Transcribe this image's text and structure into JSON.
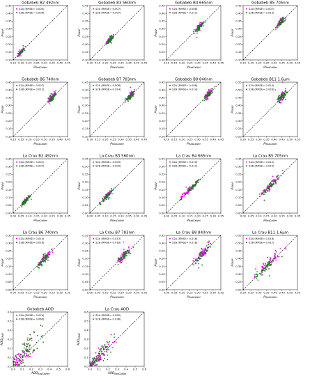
{
  "colors": {
    "s2a": "#ff00ff",
    "s2b": "#1a7a1a",
    "one_to_one": "#000000"
  },
  "chart_data": [
    {
      "type": "scatter",
      "title": "Gobabeb B2 492nm",
      "xlabel": "ρ_RadCalNet",
      "ylabel": "ρ_SNAP",
      "xlim": [
        0.1,
        0.45
      ],
      "ylim": [
        0.1,
        0.45
      ],
      "ticks": [
        0.1,
        0.15,
        0.2,
        0.25,
        0.3,
        0.35,
        0.4,
        0.45
      ],
      "tick_labels": [
        "0.10",
        "0.15",
        "0.20",
        "0.25",
        "0.30",
        "0.35",
        "0.40",
        "0.45"
      ],
      "legend": [
        "S2A (RMSE= 0.005)",
        "S2B (RMSE= 0.006)"
      ],
      "center": [
        0.15,
        0.15
      ],
      "spread": 0.012,
      "scatter": 0.005
    },
    {
      "type": "scatter",
      "title": "Gobabeb B3 560nm",
      "xlabel": "ρ_RadCalNet",
      "ylabel": "ρ_SNAP",
      "xlim": [
        0.1,
        0.45
      ],
      "ylim": [
        0.1,
        0.45
      ],
      "ticks": [
        0.1,
        0.15,
        0.2,
        0.25,
        0.3,
        0.35,
        0.4,
        0.45
      ],
      "tick_labels": [
        "0.10",
        "0.15",
        "0.20",
        "0.25",
        "0.30",
        "0.35",
        "0.40",
        "0.45"
      ],
      "legend": [
        "S2A (RMSE= 0.007)",
        "S2B (RMSE= 0.007)"
      ],
      "center": [
        0.23,
        0.23
      ],
      "spread": 0.012,
      "scatter": 0.006
    },
    {
      "type": "scatter",
      "title": "Gobabeb B4 665nm",
      "xlabel": "ρ_RadCalNet",
      "ylabel": "ρ_SNAP",
      "xlim": [
        0.1,
        0.45
      ],
      "ylim": [
        0.1,
        0.45
      ],
      "ticks": [
        0.1,
        0.15,
        0.2,
        0.25,
        0.3,
        0.35,
        0.4,
        0.45
      ],
      "tick_labels": [
        "0.10",
        "0.15",
        "0.20",
        "0.25",
        "0.30",
        "0.35",
        "0.40",
        "0.45"
      ],
      "legend": [
        "S2A (RMSE= 0.008)",
        "S2B (RMSE= 0.011)"
      ],
      "center": [
        0.31,
        0.31
      ],
      "spread": 0.012,
      "scatter": 0.008
    },
    {
      "type": "scatter",
      "title": "Gobabeb B5 705nm",
      "xlabel": "ρ_RadCalNet",
      "ylabel": "ρ_SNAP",
      "xlim": [
        0.1,
        0.45
      ],
      "ylim": [
        0.1,
        0.45
      ],
      "ticks": [
        0.1,
        0.15,
        0.2,
        0.25,
        0.3,
        0.35,
        0.4,
        0.45
      ],
      "tick_labels": [
        "0.10",
        "0.15",
        "0.20",
        "0.25",
        "0.30",
        "0.35",
        "0.40",
        "0.45"
      ],
      "legend": [
        "S2A (RMSE= 0.007)",
        "S2B (RMSE= 0.013)"
      ],
      "center": [
        0.34,
        0.34
      ],
      "spread": 0.012,
      "scatter": 0.009
    },
    {
      "type": "scatter",
      "title": "Gobabeb B6 740nm",
      "xlabel": "ρ_RadCalNet",
      "ylabel": "ρ_SNAP",
      "xlim": [
        0.1,
        0.45
      ],
      "ylim": [
        0.1,
        0.45
      ],
      "ticks": [
        0.1,
        0.15,
        0.2,
        0.25,
        0.3,
        0.35,
        0.4,
        0.45
      ],
      "tick_labels": [
        "0.10",
        "0.15",
        "0.20",
        "0.25",
        "0.30",
        "0.35",
        "0.40",
        "0.45"
      ],
      "legend": [
        "S2A (RMSE= 0.007)",
        "S2B (RMSE= 0.013)"
      ],
      "center": [
        0.35,
        0.35
      ],
      "spread": 0.012,
      "scatter": 0.009
    },
    {
      "type": "scatter",
      "title": "Gobabeb B7 783nm",
      "xlabel": "ρ_RadCalNet",
      "ylabel": "ρ_SNAP",
      "xlim": [
        0.1,
        0.45
      ],
      "ylim": [
        0.1,
        0.45
      ],
      "ticks": [
        0.1,
        0.15,
        0.2,
        0.25,
        0.3,
        0.35,
        0.4,
        0.45
      ],
      "tick_labels": [
        "0.10",
        "0.15",
        "0.20",
        "0.25",
        "0.30",
        "0.35",
        "0.40",
        "0.45"
      ],
      "legend": [
        "S2A (RMSE= 0.008)",
        "S2B (RMSE= 0.014)"
      ],
      "center": [
        0.36,
        0.36
      ],
      "spread": 0.012,
      "scatter": 0.009
    },
    {
      "type": "scatter",
      "title": "Gobabeb B8 840nm",
      "xlabel": "ρ_RadCalNet",
      "ylabel": "ρ_SNAP",
      "xlim": [
        0.1,
        0.45
      ],
      "ylim": [
        0.1,
        0.45
      ],
      "ticks": [
        0.1,
        0.15,
        0.2,
        0.25,
        0.3,
        0.35,
        0.4,
        0.45
      ],
      "tick_labels": [
        "0.10",
        "0.15",
        "0.20",
        "0.25",
        "0.30",
        "0.35",
        "0.40",
        "0.45"
      ],
      "legend": [
        "S2A (RMSE= 0.008)",
        "S2B (RMSE= 0.014)"
      ],
      "center": [
        0.37,
        0.37
      ],
      "spread": 0.012,
      "scatter": 0.009
    },
    {
      "type": "scatter",
      "title": "Gobabeb B11 1.6µm",
      "xlabel": "ρ_RadCalNet",
      "ylabel": "ρ_SNAP",
      "xlim": [
        0.2,
        0.55
      ],
      "ylim": [
        0.2,
        0.55
      ],
      "ticks": [
        0.2,
        0.25,
        0.3,
        0.35,
        0.4,
        0.45,
        0.5,
        0.55
      ],
      "tick_labels": [
        "0.20",
        "0.25",
        "0.30",
        "0.35",
        "0.40",
        "0.45",
        "0.50",
        "0.55"
      ],
      "legend": [
        "S2A (RMSE= 0.014)",
        "S2B (RMSE= 0.026)"
      ],
      "center": [
        0.45,
        0.46
      ],
      "spread": 0.014,
      "scatter": 0.013
    },
    {
      "type": "scatter",
      "title": "La Crau B2 492nm",
      "xlabel": "ρ_RadCalNet",
      "ylabel": "ρ_SNAP",
      "xlim": [
        0.0,
        0.35
      ],
      "ylim": [
        0.0,
        0.35
      ],
      "ticks": [
        0.0,
        0.05,
        0.1,
        0.15,
        0.2,
        0.25,
        0.3,
        0.35
      ],
      "tick_labels": [
        "0.00",
        "0.05",
        "0.10",
        "0.15",
        "0.20",
        "0.25",
        "0.30",
        "0.35"
      ],
      "legend": [
        "S2A (RMSE= 0.007)",
        "S2B (RMSE= 0.007)"
      ],
      "center": [
        0.08,
        0.08
      ],
      "spread": 0.015,
      "scatter": 0.006
    },
    {
      "type": "scatter",
      "title": "La Crau B3 560nm",
      "xlabel": "ρ_RadCalNet",
      "ylabel": "ρ_SNAP",
      "xlim": [
        0.0,
        0.35
      ],
      "ylim": [
        0.0,
        0.35
      ],
      "ticks": [
        0.0,
        0.05,
        0.1,
        0.15,
        0.2,
        0.25,
        0.3,
        0.35
      ],
      "tick_labels": [
        "0.00",
        "0.05",
        "0.10",
        "0.15",
        "0.20",
        "0.25",
        "0.30",
        "0.35"
      ],
      "legend": [
        "S2A (RMSE= 0.009)",
        "S2B (RMSE= 0.009)"
      ],
      "center": [
        0.11,
        0.11
      ],
      "spread": 0.018,
      "scatter": 0.007
    },
    {
      "type": "scatter",
      "title": "La Crau B4 665nm",
      "xlabel": "ρ_RadCalNet",
      "ylabel": "ρ_SNAP",
      "xlim": [
        0.0,
        0.35
      ],
      "ylim": [
        0.0,
        0.35
      ],
      "ticks": [
        0.0,
        0.05,
        0.1,
        0.15,
        0.2,
        0.25,
        0.3,
        0.35
      ],
      "tick_labels": [
        "0.00",
        "0.05",
        "0.10",
        "0.15",
        "0.20",
        "0.25",
        "0.30",
        "0.35"
      ],
      "legend": [
        "S2A (RMSE= 0.010)",
        "S2B (RMSE= 0.011)"
      ],
      "center": [
        0.15,
        0.15
      ],
      "spread": 0.03,
      "scatter": 0.008
    },
    {
      "type": "scatter",
      "title": "La Crau B5 705nm",
      "xlabel": "ρ_RadCalNet",
      "ylabel": "ρ_SNAP",
      "xlim": [
        0.0,
        0.35
      ],
      "ylim": [
        0.0,
        0.35
      ],
      "ticks": [
        0.0,
        0.05,
        0.1,
        0.15,
        0.2,
        0.25,
        0.3,
        0.35
      ],
      "tick_labels": [
        "0.00",
        "0.05",
        "0.10",
        "0.15",
        "0.20",
        "0.25",
        "0.30",
        "0.35"
      ],
      "legend": [
        "S2A (RMSE= 0.012)",
        "S2B (RMSE= 0.015)"
      ],
      "center": [
        0.18,
        0.18
      ],
      "spread": 0.03,
      "scatter": 0.01
    },
    {
      "type": "scatter",
      "title": "La Crau B6 740nm",
      "xlabel": "ρ_RadCalNet",
      "ylabel": "ρ_SNAP",
      "xlim": [
        0.0,
        0.35
      ],
      "ylim": [
        0.0,
        0.35
      ],
      "ticks": [
        0.0,
        0.05,
        0.1,
        0.15,
        0.2,
        0.25,
        0.3,
        0.35
      ],
      "tick_labels": [
        "0.00",
        "0.05",
        "0.10",
        "0.15",
        "0.20",
        "0.25",
        "0.30",
        "0.35"
      ],
      "legend": [
        "S2A (RMSE= 0.015)",
        "S2B (RMSE= 0.016)"
      ],
      "center": [
        0.2,
        0.2
      ],
      "spread": 0.02,
      "scatter": 0.012
    },
    {
      "type": "scatter",
      "title": "La Crau B7 783nm",
      "xlabel": "ρ_RadCalNet",
      "ylabel": "ρ_SNAP",
      "xlim": [
        0.0,
        0.35
      ],
      "ylim": [
        0.0,
        0.35
      ],
      "ticks": [
        0.0,
        0.05,
        0.1,
        0.15,
        0.2,
        0.25,
        0.3,
        0.35
      ],
      "tick_labels": [
        "0.00",
        "0.05",
        "0.10",
        "0.15",
        "0.20",
        "0.25",
        "0.30",
        "0.35"
      ],
      "legend": [
        "S2A (RMSE= 0.013)",
        "S2B (RMSE= 0.018)"
      ],
      "center": [
        0.22,
        0.22
      ],
      "spread": 0.022,
      "scatter": 0.013
    },
    {
      "type": "scatter",
      "title": "La Crau B8 840nm",
      "xlabel": "ρ_RadCalNet",
      "ylabel": "ρ_SNAP",
      "xlim": [
        0.0,
        0.35
      ],
      "ylim": [
        0.0,
        0.35
      ],
      "ticks": [
        0.0,
        0.05,
        0.1,
        0.15,
        0.2,
        0.25,
        0.3,
        0.35
      ],
      "tick_labels": [
        "0.00",
        "0.05",
        "0.10",
        "0.15",
        "0.20",
        "0.25",
        "0.30",
        "0.35"
      ],
      "legend": [
        "S2A (RMSE= 0.018)",
        "S2B (RMSE= 0.018)"
      ],
      "center": [
        0.23,
        0.23
      ],
      "spread": 0.022,
      "scatter": 0.014
    },
    {
      "type": "scatter",
      "title": "La Crau B11 1.6µm",
      "xlabel": "ρ_RadCalNet",
      "ylabel": "ρ_SNAP",
      "xlim": [
        0.2,
        0.55
      ],
      "ylim": [
        0.2,
        0.55
      ],
      "ticks": [
        0.2,
        0.25,
        0.3,
        0.35,
        0.4,
        0.45,
        0.5,
        0.55
      ],
      "tick_labels": [
        "0.20",
        "0.25",
        "0.30",
        "0.35",
        "0.40",
        "0.45",
        "0.50",
        "0.55"
      ],
      "legend": [
        "S2A (RMSE= 0.018)",
        "S2B (RMSE= 0.017)"
      ],
      "center": [
        0.36,
        0.36
      ],
      "spread": 0.04,
      "scatter": 0.014
    },
    {
      "type": "scatter",
      "title": "Gobabeb AOD",
      "xlabel": "AOD_RadCalNet",
      "ylabel": "AOD_SNAP",
      "xlim": [
        0.0,
        0.6
      ],
      "ylim": [
        0.0,
        0.6
      ],
      "ticks": [
        0.0,
        0.1,
        0.2,
        0.3,
        0.4,
        0.5,
        0.6
      ],
      "tick_labels": [
        "0.0",
        "0.1",
        "0.2",
        "0.3",
        "0.4",
        "0.5",
        "0.6"
      ],
      "legend": [
        "S2A (RMSE= 0.074)",
        "S2B (RMSE= 0.060)"
      ],
      "center": [
        0.1,
        0.12
      ],
      "spread": 0.07,
      "scatter": 0.06
    },
    {
      "type": "scatter",
      "title": "La Crau AOD",
      "xlabel": "AOD_RadCalNet",
      "ylabel": "AOD_SNAP",
      "xlim": [
        0.0,
        0.6
      ],
      "ylim": [
        0.0,
        0.6
      ],
      "ticks": [
        0.0,
        0.1,
        0.2,
        0.3,
        0.4,
        0.5,
        0.6
      ],
      "tick_labels": [
        "0.0",
        "0.1",
        "0.2",
        "0.3",
        "0.4",
        "0.5",
        "0.6"
      ],
      "legend": [
        "S2A (RMSE= 0.050)",
        "S2B (RMSE= 0.036)"
      ],
      "center": [
        0.1,
        0.1
      ],
      "spread": 0.07,
      "scatter": 0.045
    }
  ]
}
